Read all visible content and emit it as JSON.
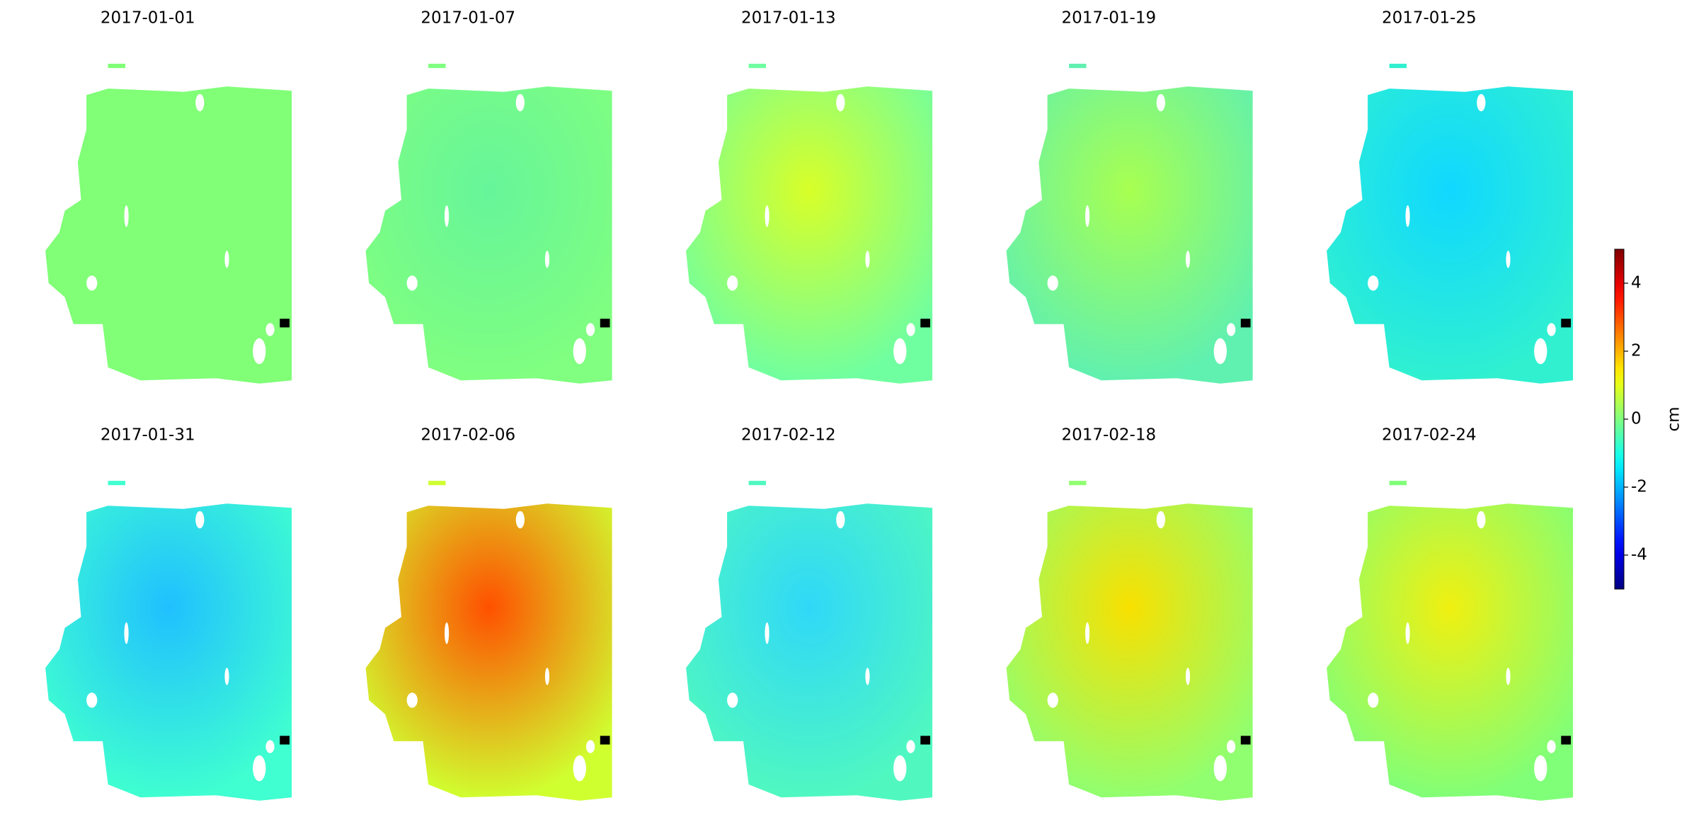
{
  "chart_data": {
    "type": "map-grid",
    "panels": [
      {
        "title": "2017-01-01",
        "color": "#80ff77",
        "accent_color": "#80ff77"
      },
      {
        "title": "2017-01-07",
        "color": "#80ff80",
        "accent_color": "#66f59a"
      },
      {
        "title": "2017-01-13",
        "color": "#70ffa0",
        "accent_color": "#d8ff28"
      },
      {
        "title": "2017-01-19",
        "color": "#60f0b0",
        "accent_color": "#a8ff50"
      },
      {
        "title": "2017-01-25",
        "color": "#30f0d0",
        "accent_color": "#10d8ff"
      },
      {
        "title": "2017-01-31",
        "color": "#40ffd0",
        "accent_color": "#20c0ff"
      },
      {
        "title": "2017-02-06",
        "color": "#d0ff30",
        "accent_color": "#ff5000"
      },
      {
        "title": "2017-02-12",
        "color": "#50f8c0",
        "accent_color": "#30d8f8"
      },
      {
        "title": "2017-02-18",
        "color": "#90ff70",
        "accent_color": "#f8e000"
      },
      {
        "title": "2017-02-24",
        "color": "#80ff78",
        "accent_color": "#f0f010"
      }
    ],
    "colormap": "jet",
    "clim": [
      -5,
      5
    ],
    "colorbar_ticks": [
      -4,
      -2,
      0,
      2,
      4
    ],
    "colorbar_label": "cm"
  }
}
